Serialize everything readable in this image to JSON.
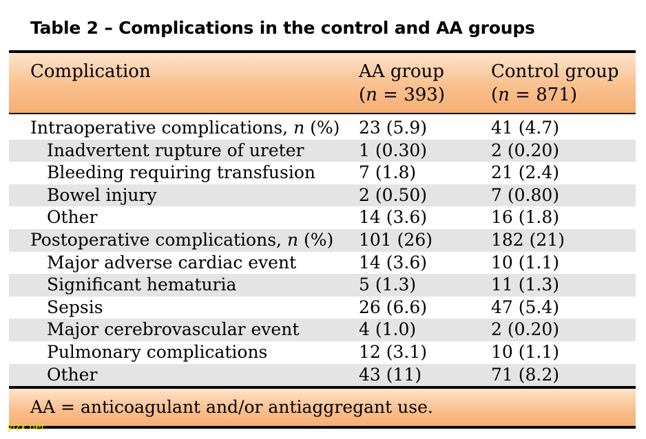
{
  "title": "Table 2 – Complications in the control and AA groups",
  "header": {
    "col1": "Complication",
    "col2_line1": "AA group",
    "col2_line2_pre": "(",
    "col2_n": "n",
    "col2_line2_post": " = 393)",
    "col3_line1": "Control group",
    "col3_line2_pre": "(",
    "col3_n": "n",
    "col3_line2_post": " = 871)"
  },
  "rows": [
    {
      "label": "Intraoperative complications, ",
      "n": "n",
      "suffix": " (%)",
      "aa": "23 (5.9)",
      "control": "41 (4.7)"
    },
    {
      "label": "Inadvertent rupture of ureter",
      "aa": "1 (0.30)",
      "control": "2 (0.20)"
    },
    {
      "label": "Bleeding requiring transfusion",
      "aa": "7 (1.8)",
      "control": "21 (2.4)"
    },
    {
      "label": "Bowel injury",
      "aa": "2 (0.50)",
      "control": "7 (0.80)"
    },
    {
      "label": "Other",
      "aa": "14 (3.6)",
      "control": "16 (1.8)"
    },
    {
      "label": "Postoperative complications, ",
      "n": "n",
      "suffix": " (%)",
      "aa": "101 (26)",
      "control": "182 (21)"
    },
    {
      "label": "Major adverse cardiac event",
      "aa": "14 (3.6)",
      "control": "10 (1.1)"
    },
    {
      "label": "Significant hematuria",
      "aa": "5 (1.3)",
      "control": "11 (1.3)"
    },
    {
      "label": "Sepsis",
      "aa": "26 (6.6)",
      "control": "47 (5.4)"
    },
    {
      "label": "Major cerebrovascular event",
      "aa": "4 (1.0)",
      "control": "2 (0.20)"
    },
    {
      "label": "Pulmonary complications",
      "aa": "12 (3.1)",
      "control": "10 (1.1)"
    },
    {
      "label": "Other",
      "aa": "43 (11)",
      "control": "71 (8.2)"
    }
  ],
  "footnote": "AA = anticoagulant and/or antiaggregant use.",
  "watermark": "yizx.net",
  "colors": {
    "header_band": "#f9c08f",
    "row_shade": "#e4e4e4",
    "watermark": "#e8e800"
  }
}
